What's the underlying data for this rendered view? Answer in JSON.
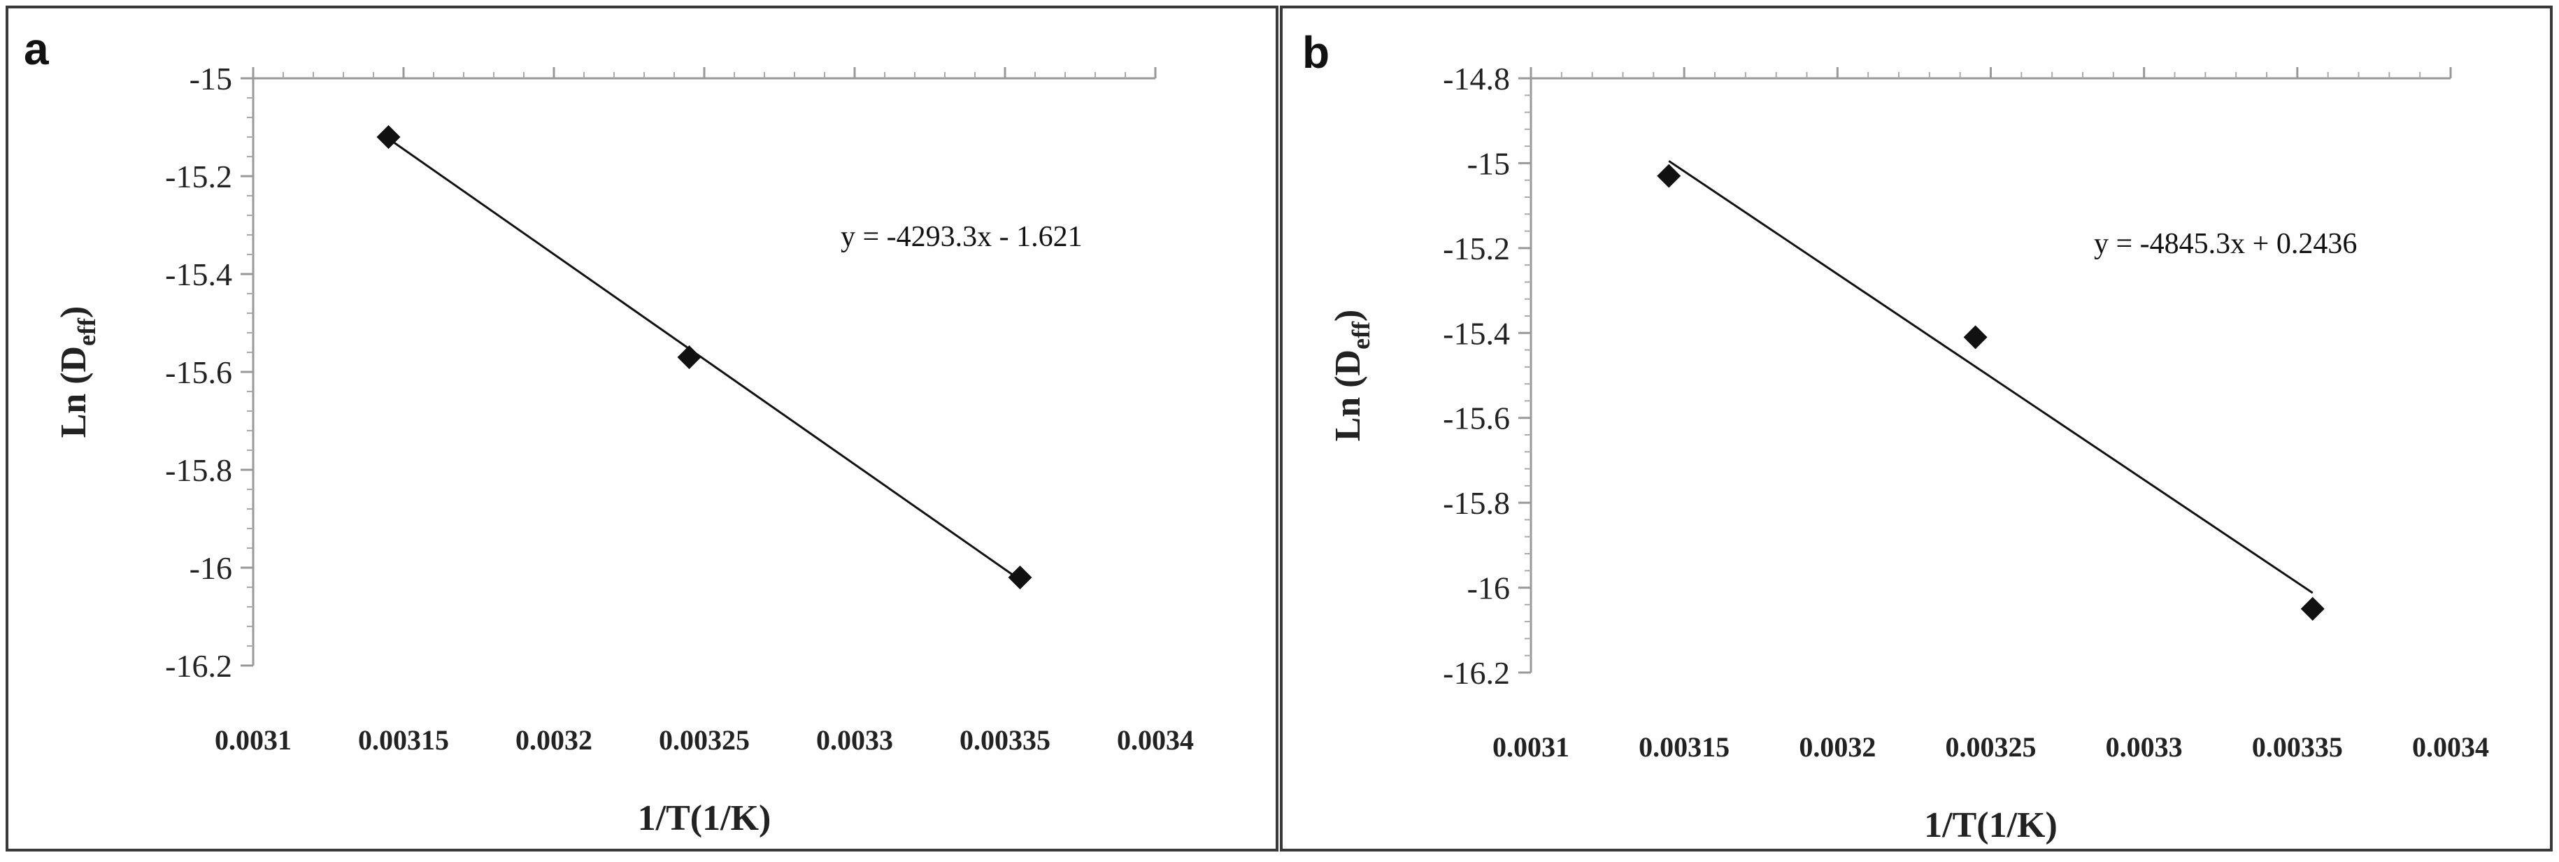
{
  "chart_data": [
    {
      "type": "scatter",
      "panel_label": "a",
      "xlabel": "1/T(1/K)",
      "ylabel": {
        "main": "Ln (D",
        "sub": "eff",
        "close": ")"
      },
      "xlim": [
        0.0031,
        0.0034
      ],
      "ylim": [
        -16.2,
        -15.0
      ],
      "xticks": [
        "0.0031",
        "0.00315",
        "0.0032",
        "0.00325",
        "0.0033",
        "0.00335",
        "0.0034"
      ],
      "yticks": [
        "-15",
        "-15.2",
        "-15.4",
        "-15.6",
        "-15.8",
        "-16",
        "-16.2"
      ],
      "points": [
        {
          "x": 0.003145,
          "y": -15.12
        },
        {
          "x": 0.003245,
          "y": -15.57
        },
        {
          "x": 0.003355,
          "y": -16.02
        }
      ],
      "trendline": {
        "slope": -4293.3,
        "intercept": -1.621,
        "x_start": 0.003145,
        "x_end": 0.003355
      },
      "equation": "y = -4293.3x - 1.621"
    },
    {
      "type": "scatter",
      "panel_label": "b",
      "xlabel": "1/T(1/K)",
      "ylabel": {
        "main": "Ln (D",
        "sub": "eff",
        "close": ")"
      },
      "xlim": [
        0.0031,
        0.0034
      ],
      "ylim": [
        -16.2,
        -14.8
      ],
      "xticks": [
        "0.0031",
        "0.00315",
        "0.0032",
        "0.00325",
        "0.0033",
        "0.00335",
        "0.0034"
      ],
      "yticks": [
        "-14.8",
        "-15",
        "-15.2",
        "-15.4",
        "-15.6",
        "-15.8",
        "-16",
        "-16.2"
      ],
      "points": [
        {
          "x": 0.003145,
          "y": -15.03
        },
        {
          "x": 0.003245,
          "y": -15.41
        },
        {
          "x": 0.003355,
          "y": -16.05
        }
      ],
      "trendline": {
        "slope": -4845.3,
        "intercept": 0.2436,
        "x_start": 0.003145,
        "x_end": 0.003355
      },
      "equation": "y = -4845.3x + 0.2436"
    }
  ]
}
